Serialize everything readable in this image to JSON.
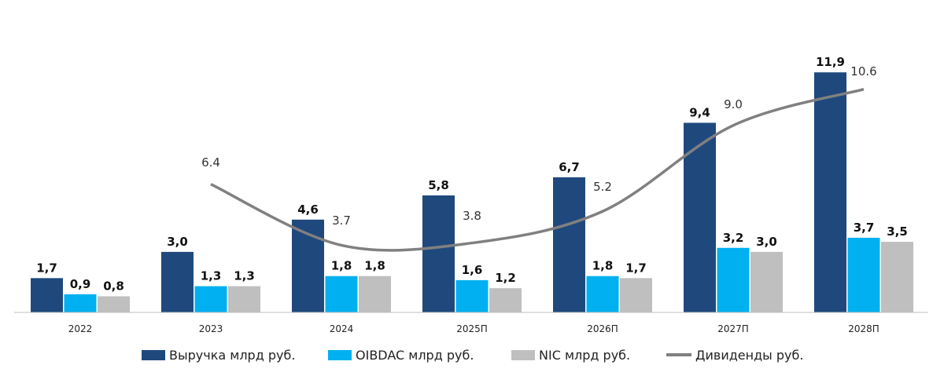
{
  "chart_data": {
    "type": "bar",
    "categories": [
      "2022",
      "2023",
      "2024",
      "2025П",
      "2026П",
      "2027П",
      "2028П"
    ],
    "series": [
      {
        "name": "Выручка млрд руб.",
        "color": "#1F497D",
        "values": [
          1.7,
          3.0,
          4.6,
          5.8,
          6.7,
          9.4,
          11.9
        ],
        "labels": [
          "1,7",
          "3,0",
          "4,6",
          "5,8",
          "6,7",
          "9,4",
          "11,9"
        ]
      },
      {
        "name": "OIBDAC млрд руб.",
        "color": "#00B0F0",
        "values": [
          0.9,
          1.3,
          1.8,
          1.6,
          1.8,
          3.2,
          3.7
        ],
        "labels": [
          "0,9",
          "1,3",
          "1,8",
          "1,6",
          "1,8",
          "3,2",
          "3,7"
        ]
      },
      {
        "name": "NIC млрд руб.",
        "color": "#BFBFBF",
        "values": [
          0.8,
          1.3,
          1.8,
          1.2,
          1.7,
          3.0,
          3.5
        ],
        "labels": [
          "0,8",
          "1,3",
          "1,8",
          "1,2",
          "1,7",
          "3,0",
          "3,5"
        ]
      }
    ],
    "line": {
      "name": "Дивиденды руб.",
      "color": "#808080",
      "values": [
        null,
        6.4,
        3.7,
        3.8,
        5.2,
        9.0,
        10.6
      ],
      "labels": [
        "",
        "6.4",
        "3.7",
        "3.8",
        "5.2",
        "9.0",
        "10.6"
      ]
    },
    "title": "",
    "xlabel": "",
    "ylabel": "",
    "grid": false,
    "legend_position": "bottom"
  }
}
